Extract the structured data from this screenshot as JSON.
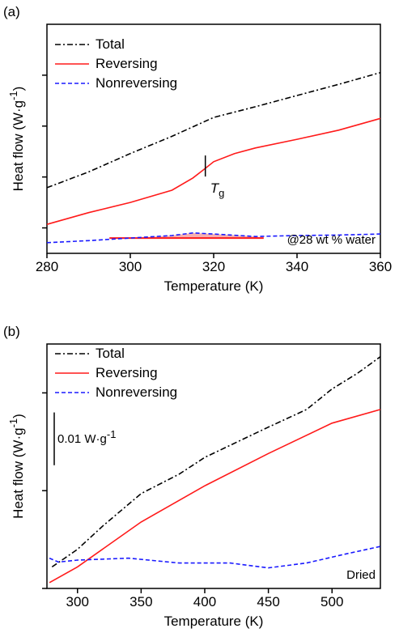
{
  "chart_data": [
    {
      "type": "line",
      "panel_label": "(a)",
      "xlabel": "Temperature (K)",
      "ylabel": "Heat flow (W·g",
      "ylabel_sup": "-1",
      "ylabel_end": ")",
      "xlim": [
        280,
        360
      ],
      "xticks": [
        280,
        300,
        320,
        340,
        360
      ],
      "ylim": [
        -0.5,
        4
      ],
      "yticks": [
        0,
        1,
        2,
        3
      ],
      "annotation": "@28 wt % water",
      "tg_marker": {
        "x": 318,
        "y": 1.2,
        "label": "T",
        "label_sub": "g"
      },
      "shaded_range": [
        295,
        332
      ],
      "series": [
        {
          "name": "Total",
          "color": "#000000",
          "style": "dashdot",
          "x": [
            280,
            290,
            300,
            310,
            320,
            330,
            340,
            350,
            360
          ],
          "values": [
            0.79,
            1.1,
            1.46,
            1.8,
            2.17,
            2.38,
            2.6,
            2.82,
            3.05
          ]
        },
        {
          "name": "Reversing",
          "color": "#ff1a1a",
          "style": "solid",
          "x": [
            280,
            290,
            300,
            310,
            315,
            318,
            320,
            325,
            330,
            340,
            350,
            360
          ],
          "values": [
            0.07,
            0.3,
            0.5,
            0.74,
            0.98,
            1.17,
            1.3,
            1.46,
            1.57,
            1.74,
            1.92,
            2.15
          ]
        },
        {
          "name": "Nonreversing",
          "color": "#1a1aff",
          "style": "dashed",
          "x": [
            280,
            290,
            300,
            310,
            315,
            320,
            330,
            340,
            350,
            360
          ],
          "values": [
            -0.29,
            -0.25,
            -0.2,
            -0.15,
            -0.1,
            -0.12,
            -0.17,
            -0.15,
            -0.14,
            -0.12
          ]
        }
      ]
    },
    {
      "type": "line",
      "panel_label": "(b)",
      "xlabel": "Temperature (K)",
      "ylabel": "Heat flow (W·g",
      "ylabel_sup": "-1",
      "ylabel_end": ")",
      "xlim": [
        276,
        538
      ],
      "xticks": [
        300,
        350,
        400,
        450,
        500
      ],
      "ylim": [
        0,
        2.5
      ],
      "yticks": [
        0,
        1,
        2
      ],
      "annotation": "Dried",
      "scale_bar": {
        "label": "0.01 W·g",
        "label_sup": "-1",
        "bottom": 1.26,
        "length": 0.54
      },
      "series": [
        {
          "name": "Total",
          "color": "#000000",
          "style": "dashdot",
          "x": [
            280,
            290,
            300,
            320,
            350,
            380,
            400,
            450,
            480,
            500,
            520,
            538
          ],
          "values": [
            0.22,
            0.31,
            0.4,
            0.64,
            0.97,
            1.17,
            1.34,
            1.65,
            1.83,
            2.04,
            2.2,
            2.37
          ]
        },
        {
          "name": "Reversing",
          "color": "#ff1a1a",
          "style": "solid",
          "x": [
            278,
            300,
            350,
            400,
            450,
            500,
            538
          ],
          "values": [
            0.06,
            0.22,
            0.68,
            1.05,
            1.38,
            1.69,
            1.83
          ]
        },
        {
          "name": "Nonreversing",
          "color": "#1a1aff",
          "style": "dashed",
          "x": [
            278,
            285,
            300,
            340,
            380,
            420,
            450,
            480,
            510,
            538
          ],
          "values": [
            0.31,
            0.27,
            0.29,
            0.31,
            0.26,
            0.26,
            0.21,
            0.26,
            0.35,
            0.43
          ]
        }
      ]
    }
  ]
}
